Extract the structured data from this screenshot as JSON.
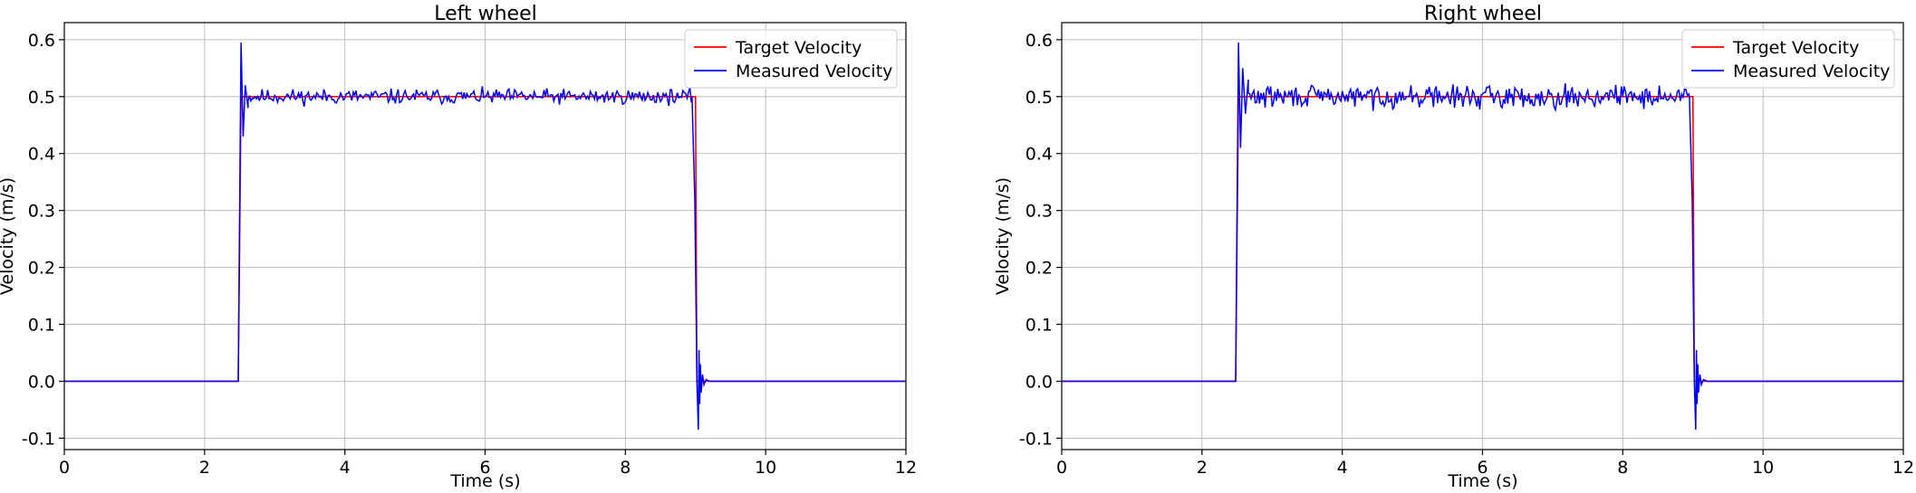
{
  "chart_data": [
    {
      "type": "line",
      "title": "Left wheel",
      "xlabel": "Time (s)",
      "ylabel": "Velocity (m/s)",
      "xlim": [
        0,
        12
      ],
      "ylim": [
        -0.12,
        0.63
      ],
      "xticks": [
        0,
        2,
        4,
        6,
        8,
        10,
        12
      ],
      "yticks": [
        -0.1,
        0.0,
        0.1,
        0.2,
        0.3,
        0.4,
        0.5,
        0.6
      ],
      "grid": true,
      "legend_position": "upper right",
      "series": [
        {
          "name": "Target Velocity",
          "color": "#ff0000",
          "x": [
            0,
            2.48,
            2.52,
            9.0,
            9.02,
            12
          ],
          "y": [
            0,
            0,
            0.5,
            0.5,
            0,
            0
          ]
        },
        {
          "name": "Measured Velocity",
          "color": "#0000ff",
          "segments": [
            {
              "x": [
                0,
                2.48,
                2.5,
                2.52,
                2.55,
                2.58,
                2.62
              ],
              "y": [
                0,
                0,
                0.3,
                0.595,
                0.43,
                0.52,
                0.48
              ]
            },
            {
              "from": 2.62,
              "to": 8.95,
              "dt": 0.02,
              "base": 0.5,
              "amp": 0.012,
              "seed": 11
            },
            {
              "x": [
                8.95,
                8.99,
                9.02,
                9.04,
                9.05,
                9.06,
                9.07,
                9.08,
                9.1,
                9.12,
                9.15,
                9.2,
                12
              ],
              "y": [
                0.5,
                0.32,
                0.0,
                -0.085,
                0.055,
                -0.04,
                0.03,
                -0.02,
                0.012,
                -0.006,
                0.003,
                0,
                0
              ]
            }
          ]
        }
      ]
    },
    {
      "type": "line",
      "title": "Right wheel",
      "xlabel": "Time (s)",
      "ylabel": "Velocity (m/s)",
      "xlim": [
        0,
        12
      ],
      "ylim": [
        -0.12,
        0.63
      ],
      "xticks": [
        0,
        2,
        4,
        6,
        8,
        10,
        12
      ],
      "yticks": [
        -0.1,
        0.0,
        0.1,
        0.2,
        0.3,
        0.4,
        0.5,
        0.6
      ],
      "grid": true,
      "legend_position": "upper right",
      "series": [
        {
          "name": "Target Velocity",
          "color": "#ff0000",
          "x": [
            0,
            2.48,
            2.52,
            9.0,
            9.02,
            12
          ],
          "y": [
            0,
            0,
            0.5,
            0.5,
            0,
            0
          ]
        },
        {
          "name": "Measured Velocity",
          "color": "#0000ff",
          "segments": [
            {
              "x": [
                0,
                2.48,
                2.5,
                2.52,
                2.55,
                2.58,
                2.62,
                2.66
              ],
              "y": [
                0,
                0,
                0.3,
                0.595,
                0.41,
                0.55,
                0.47,
                0.53
              ]
            },
            {
              "from": 2.66,
              "to": 8.95,
              "dt": 0.02,
              "base": 0.5,
              "amp": 0.018,
              "seed": 29
            },
            {
              "x": [
                8.95,
                8.99,
                9.02,
                9.04,
                9.05,
                9.06,
                9.07,
                9.08,
                9.1,
                9.12,
                9.15,
                9.2,
                12
              ],
              "y": [
                0.5,
                0.32,
                0.0,
                -0.085,
                0.055,
                -0.04,
                0.03,
                -0.02,
                0.012,
                -0.006,
                0.003,
                0,
                0
              ]
            }
          ]
        }
      ]
    }
  ]
}
